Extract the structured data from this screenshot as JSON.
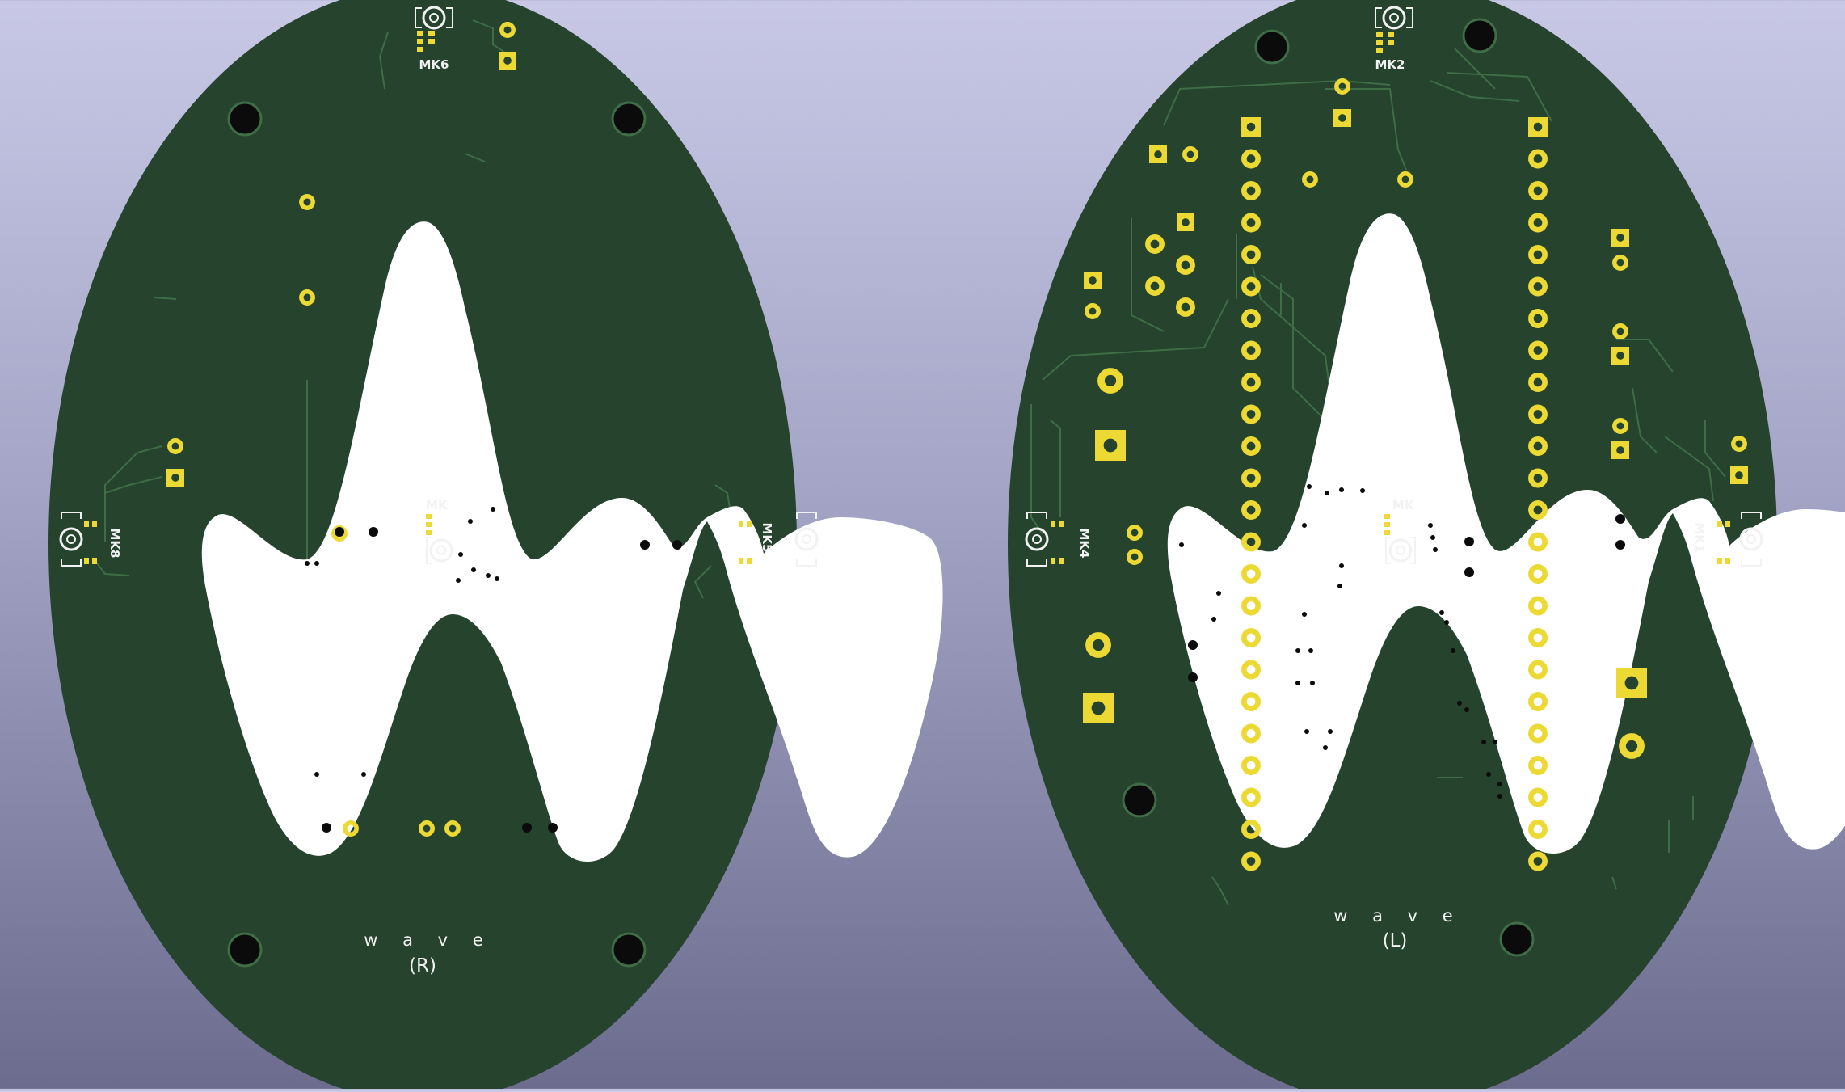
{
  "colors": {
    "board": "#25432d",
    "track": "#3e6d46",
    "copper": "#ecd934",
    "cutout": "#ffffff",
    "hole": "#0b0b0b",
    "silkscreen": "#f2f2f2"
  },
  "boards": {
    "right": {
      "name": "w a v e",
      "side": "(R)",
      "refs": {
        "top": "MK6",
        "left": "MK8",
        "right": "MK5",
        "center": "MK"
      }
    },
    "left": {
      "name": "w a v e",
      "side": "(L)",
      "refs": {
        "top": "MK2",
        "left": "MK4",
        "right": "MK1",
        "center": "MK"
      }
    }
  }
}
